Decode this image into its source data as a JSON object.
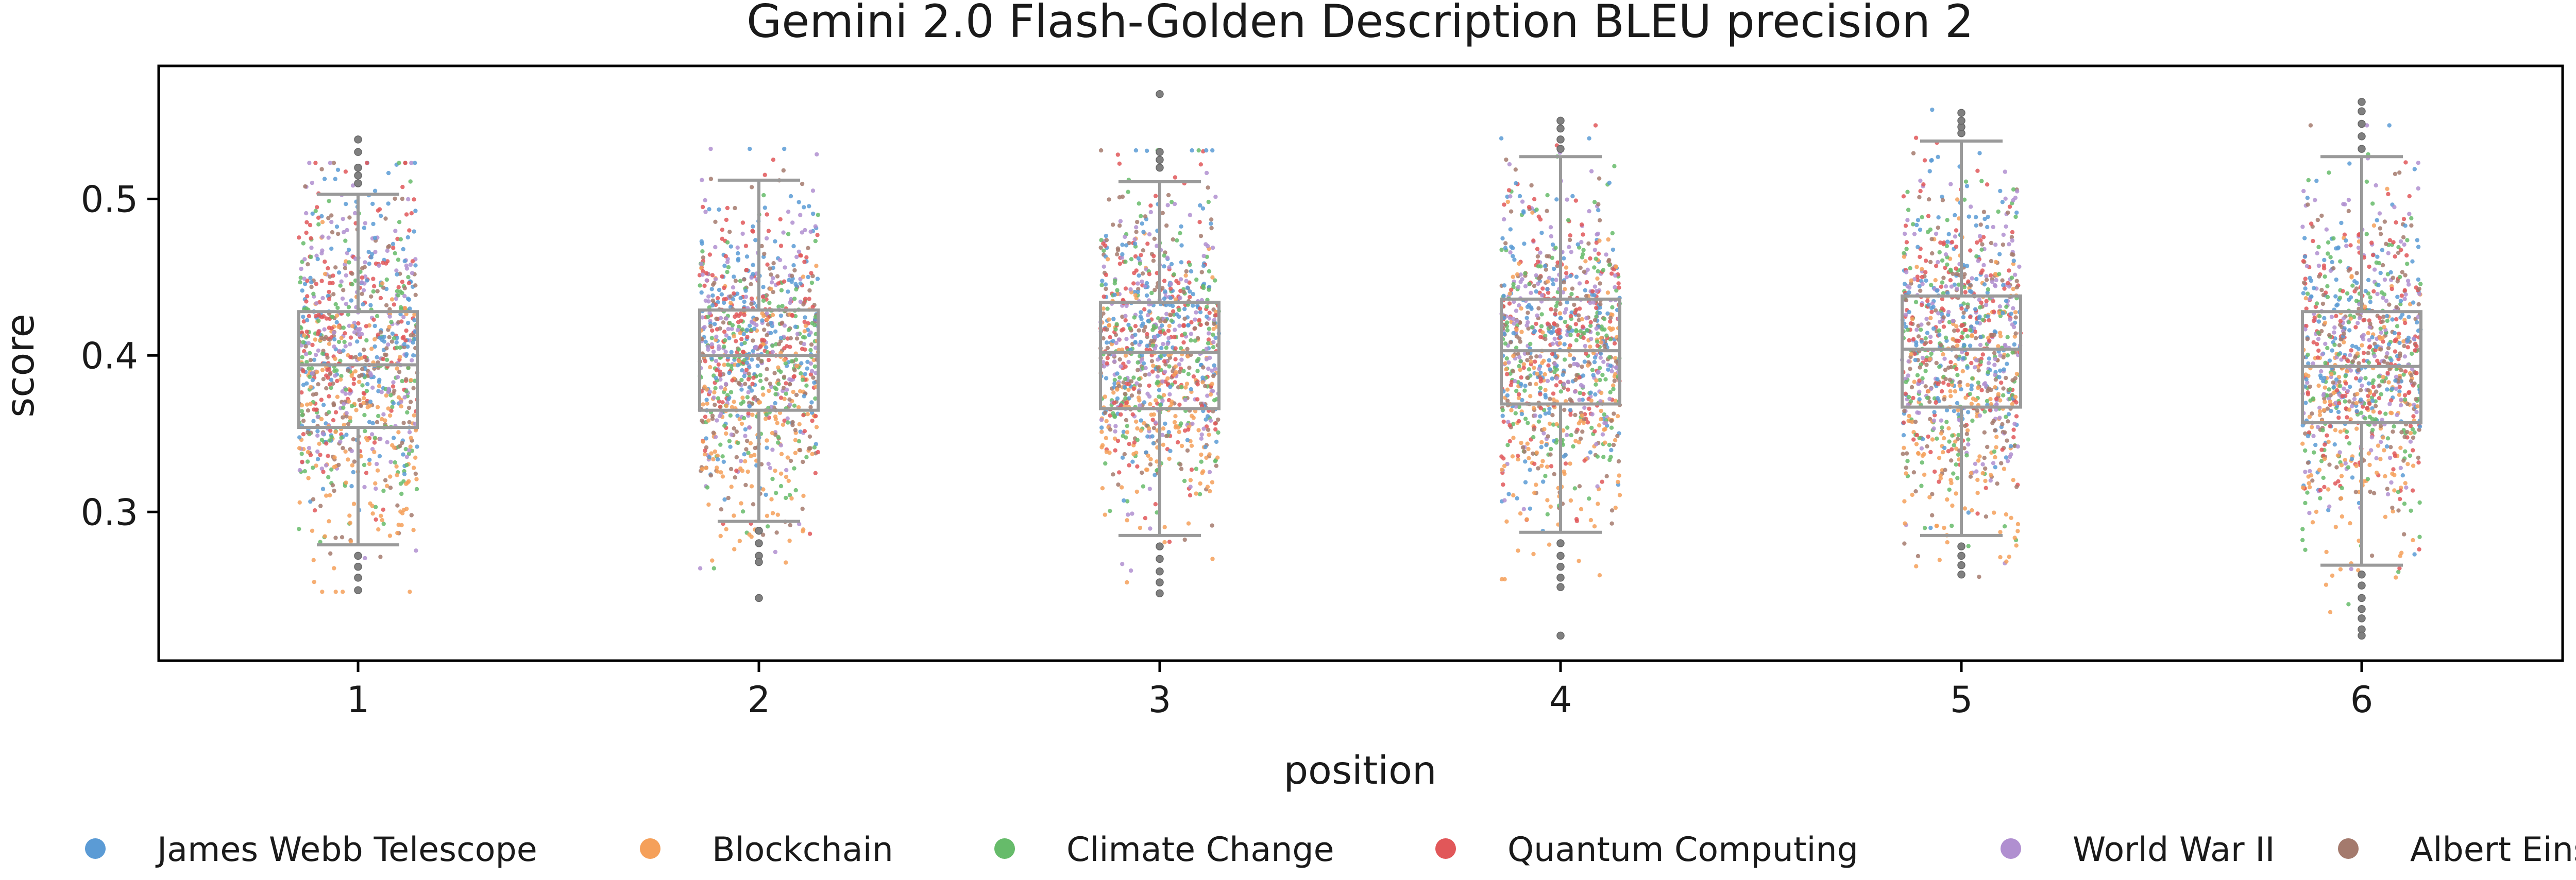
{
  "chart_data": {
    "type": "box+strip",
    "title": "Gemini 2.0 Flash-Golden Description BLEU precision 2",
    "xlabel": "position",
    "ylabel": "score",
    "ylim": [
      0.205,
      0.585
    ],
    "yticks": [
      0.3,
      0.4,
      0.5
    ],
    "categories": [
      "1",
      "2",
      "3",
      "4",
      "5",
      "6"
    ],
    "boxes": [
      {
        "position": "1",
        "whisker_low": 0.279,
        "q1": 0.354,
        "median": 0.394,
        "q3": 0.428,
        "whisker_high": 0.503,
        "fliers": [
          0.51,
          0.515,
          0.52,
          0.53,
          0.538,
          0.272,
          0.265,
          0.258,
          0.25
        ]
      },
      {
        "position": "2",
        "whisker_low": 0.294,
        "q1": 0.365,
        "median": 0.4,
        "q3": 0.429,
        "whisker_high": 0.512,
        "fliers": [
          0.288,
          0.28,
          0.272,
          0.268,
          0.245
        ]
      },
      {
        "position": "3",
        "whisker_low": 0.285,
        "q1": 0.366,
        "median": 0.402,
        "q3": 0.434,
        "whisker_high": 0.511,
        "fliers": [
          0.52,
          0.525,
          0.53,
          0.567,
          0.278,
          0.27,
          0.262,
          0.255,
          0.248
        ]
      },
      {
        "position": "4",
        "whisker_low": 0.287,
        "q1": 0.369,
        "median": 0.403,
        "q3": 0.436,
        "whisker_high": 0.527,
        "fliers": [
          0.532,
          0.538,
          0.545,
          0.55,
          0.28,
          0.272,
          0.265,
          0.258,
          0.252,
          0.221
        ]
      },
      {
        "position": "5",
        "whisker_low": 0.285,
        "q1": 0.367,
        "median": 0.404,
        "q3": 0.438,
        "whisker_high": 0.537,
        "fliers": [
          0.542,
          0.546,
          0.55,
          0.555,
          0.278,
          0.272,
          0.266,
          0.26
        ]
      },
      {
        "position": "6",
        "whisker_low": 0.266,
        "q1": 0.357,
        "median": 0.393,
        "q3": 0.428,
        "whisker_high": 0.527,
        "fliers": [
          0.532,
          0.54,
          0.548,
          0.556,
          0.562,
          0.26,
          0.253,
          0.245,
          0.238,
          0.232,
          0.225,
          0.221
        ]
      }
    ],
    "series": [
      {
        "name": "James Webb Telescope",
        "color": "#5b9bd5",
        "mean_offset": 0.015
      },
      {
        "name": "Blockchain",
        "color": "#f5a05a",
        "mean_offset": -0.035
      },
      {
        "name": "Climate Change",
        "color": "#66bb6a",
        "mean_offset": -0.005
      },
      {
        "name": "Quantum Computing",
        "color": "#e15759",
        "mean_offset": 0.012
      },
      {
        "name": "World War II",
        "color": "#b08fd0",
        "mean_offset": 0.01
      },
      {
        "name": "Albert Einstein",
        "color": "#a47a6d",
        "mean_offset": 0.0
      }
    ],
    "points_per_series_per_position": 160,
    "box_color": "#9a9a9a",
    "flier_color": "#808080",
    "legend_placement": "bottom",
    "grid": false
  }
}
